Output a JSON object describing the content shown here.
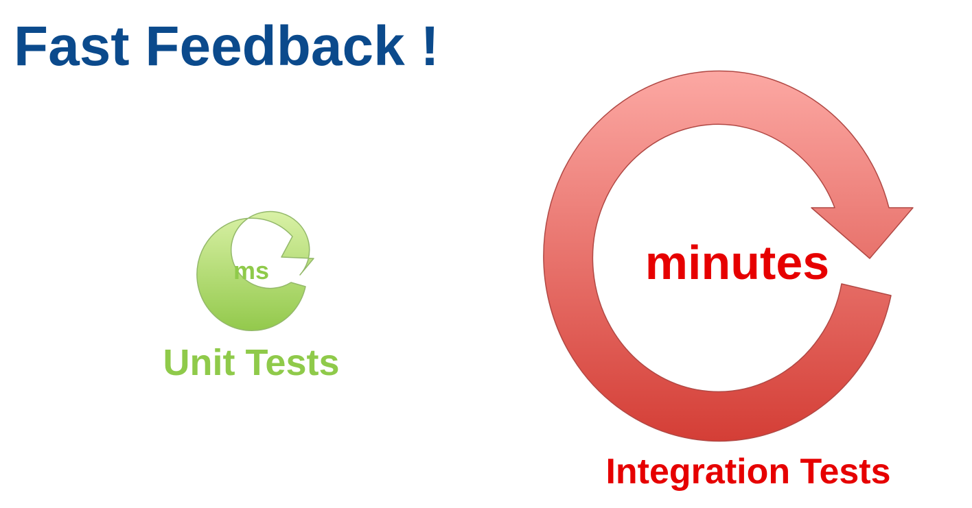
{
  "title": "Fast Feedback !",
  "unit_tests": {
    "center_text": "ms",
    "label": "Unit Tests",
    "colors": {
      "arrow_top": "#d9f1a6",
      "arrow_bottom": "#93c94c",
      "text": "#8fca4a"
    }
  },
  "integration_tests": {
    "center_text": "minutes",
    "label": "Integration Tests",
    "colors": {
      "arrow_top": "#fca8a3",
      "arrow_bottom": "#d43e36",
      "text": "#e60000"
    }
  },
  "colors": {
    "title": "#0b4a8c",
    "background": "#ffffff"
  }
}
